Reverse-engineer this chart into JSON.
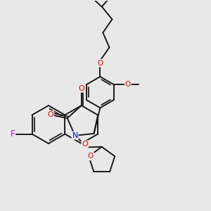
{
  "background_color": "#e8e8e8",
  "bond_color": "#1a1a1a",
  "bond_width": 1.4,
  "atom_colors": {
    "O": "#ff0000",
    "N": "#0000ff",
    "F": "#cc00cc",
    "C": "#1a1a1a"
  },
  "figsize": [
    3.0,
    3.0
  ],
  "dpi": 100,
  "xlim": [
    -2.5,
    8.5
  ],
  "ylim": [
    -4.5,
    6.5
  ]
}
